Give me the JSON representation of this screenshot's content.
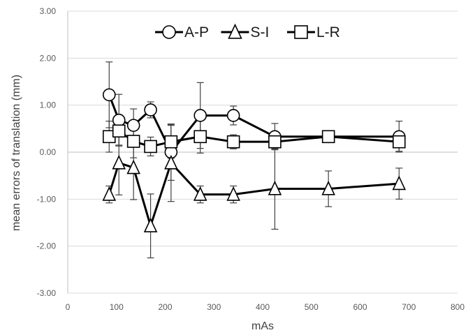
{
  "chart_data": {
    "type": "line",
    "title": "",
    "xlabel": "mAs",
    "ylabel": "mean errors of translation  (mm)",
    "xlim": [
      0,
      800
    ],
    "ylim": [
      -3,
      3
    ],
    "x_ticks": [
      0,
      100,
      200,
      300,
      400,
      500,
      600,
      700,
      800
    ],
    "x_tick_labels": [
      "0",
      "100",
      "200",
      "300",
      "400",
      "500",
      "600",
      "700",
      "800"
    ],
    "y_ticks": [
      3,
      2,
      1,
      0,
      -1,
      -2,
      -3
    ],
    "y_tick_labels": [
      "3.00",
      "2.00",
      "1.00",
      "0.00",
      "-1.00",
      "-2.00",
      "-3.00"
    ],
    "grid": "horizontal",
    "legend_position": "top",
    "x": [
      85,
      105,
      135,
      170,
      212,
      272,
      340,
      425,
      535,
      680
    ],
    "series": [
      {
        "name": "A-P",
        "marker": "circle",
        "values": [
          1.22,
          0.68,
          0.57,
          0.9,
          0.0,
          0.78,
          0.78,
          0.33,
          0.33,
          0.33
        ],
        "errors": [
          0.7,
          0.55,
          0.35,
          0.17,
          0.6,
          0.7,
          0.2,
          0.28,
          0.05,
          0.33
        ]
      },
      {
        "name": "S-I",
        "marker": "triangle",
        "values": [
          -0.9,
          -0.23,
          -0.33,
          -1.57,
          -0.23,
          -0.9,
          -0.9,
          -0.78,
          -0.78,
          -0.67
        ],
        "errors": [
          0.18,
          0.68,
          0.68,
          0.68,
          0.82,
          0.18,
          0.18,
          0.86,
          0.38,
          0.33
        ]
      },
      {
        "name": "L-R",
        "marker": "square",
        "values": [
          0.33,
          0.45,
          0.23,
          0.12,
          0.22,
          0.33,
          0.22,
          0.22,
          0.33,
          0.22
        ],
        "errors": [
          0.33,
          0.3,
          0.35,
          0.2,
          0.35,
          0.35,
          0.15,
          0.15,
          0.07,
          0.2
        ]
      }
    ]
  }
}
